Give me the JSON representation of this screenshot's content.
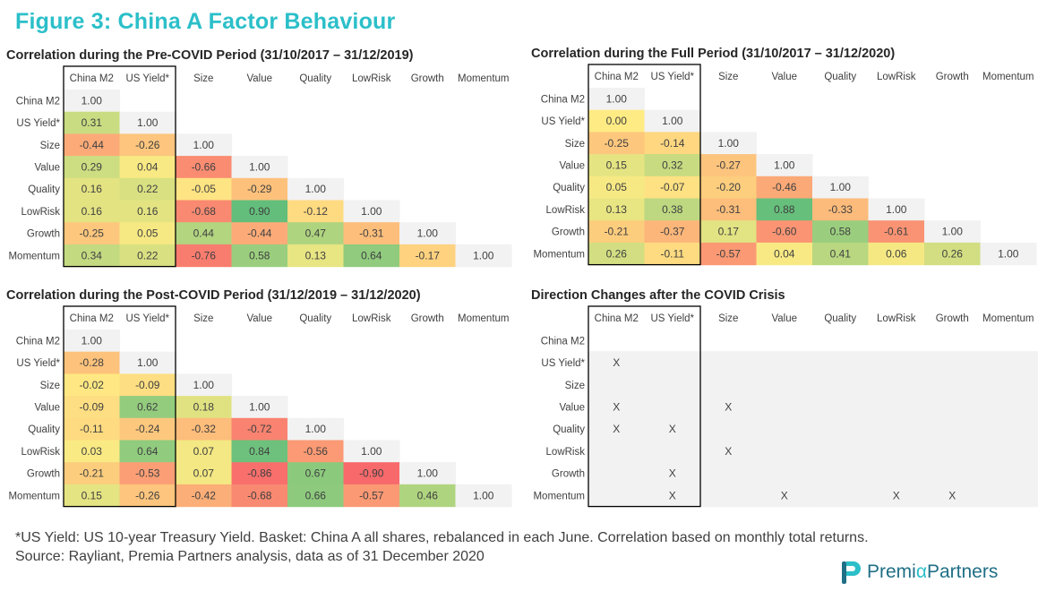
{
  "figure": {
    "title": "Figure 3: China A Factor Behaviour",
    "footnote_line1": "*US Yield: US 10-year Treasury Yield. Basket: China A all shares, rebalanced in each June. Correlation based on monthly total returns.",
    "footnote_line2": "Source: Rayliant, Premia Partners analysis, data as of 31 December 2020",
    "logo": {
      "part1": "Premi",
      "alpha": "α",
      "part2": "Partners",
      "icon": "premia-p-logo-icon"
    }
  },
  "colors": {
    "title": "#2bbfc9",
    "diagonal": "#f2f2f2",
    "positive_strong": "#63be7b",
    "neutral": "#ffeb84",
    "negative_strong": "#f8696b",
    "direction_bg": "#f2f2f2"
  },
  "chart_data": [
    {
      "type": "heatmap",
      "title": "Correlation during the Pre-COVID Period (31/10/2017 – 31/12/2019)",
      "columns": [
        "China M2",
        "US Yield*",
        "Size",
        "Value",
        "Quality",
        "LowRisk",
        "Growth",
        "Momentum"
      ],
      "rows": [
        "China M2",
        "US Yield*",
        "Size",
        "Value",
        "Quality",
        "LowRisk",
        "Growth",
        "Momentum"
      ],
      "highlighted_columns": [
        "China M2",
        "US Yield*"
      ],
      "values": [
        [
          1.0
        ],
        [
          0.31,
          1.0
        ],
        [
          -0.44,
          -0.26,
          1.0
        ],
        [
          0.29,
          0.04,
          -0.66,
          1.0
        ],
        [
          0.16,
          0.22,
          -0.05,
          -0.29,
          1.0
        ],
        [
          0.16,
          0.16,
          -0.68,
          0.9,
          -0.12,
          1.0
        ],
        [
          -0.25,
          0.05,
          0.44,
          -0.44,
          0.47,
          -0.31,
          1.0
        ],
        [
          0.34,
          0.22,
          -0.76,
          0.58,
          0.13,
          0.64,
          -0.17,
          1.0
        ]
      ]
    },
    {
      "type": "heatmap",
      "title": "Correlation during the Full Period (31/10/2017 – 31/12/2020)",
      "columns": [
        "China M2",
        "US Yield*",
        "Size",
        "Value",
        "Quality",
        "LowRisk",
        "Growth",
        "Momentum"
      ],
      "rows": [
        "China M2",
        "US Yield*",
        "Size",
        "Value",
        "Quality",
        "LowRisk",
        "Growth",
        "Momentum"
      ],
      "highlighted_columns": [
        "China M2",
        "US Yield*"
      ],
      "values": [
        [
          1.0
        ],
        [
          0.0,
          1.0
        ],
        [
          -0.25,
          -0.14,
          1.0
        ],
        [
          0.15,
          0.32,
          -0.27,
          1.0
        ],
        [
          0.05,
          -0.07,
          -0.2,
          -0.46,
          1.0
        ],
        [
          0.13,
          0.38,
          -0.31,
          0.88,
          -0.33,
          1.0
        ],
        [
          -0.21,
          -0.37,
          0.17,
          -0.6,
          0.58,
          -0.61,
          1.0
        ],
        [
          0.26,
          -0.11,
          -0.57,
          0.04,
          0.41,
          0.06,
          0.26,
          1.0
        ]
      ]
    },
    {
      "type": "heatmap",
      "title": "Correlation during the Post-COVID Period (31/12/2019 – 31/12/2020)",
      "columns": [
        "China M2",
        "US Yield*",
        "Size",
        "Value",
        "Quality",
        "LowRisk",
        "Growth",
        "Momentum"
      ],
      "rows": [
        "China M2",
        "US Yield*",
        "Size",
        "Value",
        "Quality",
        "LowRisk",
        "Growth",
        "Momentum"
      ],
      "highlighted_columns": [
        "China M2",
        "US Yield*"
      ],
      "values": [
        [
          1.0
        ],
        [
          -0.28,
          1.0
        ],
        [
          -0.02,
          -0.09,
          1.0
        ],
        [
          -0.09,
          0.62,
          0.18,
          1.0
        ],
        [
          -0.11,
          -0.24,
          -0.32,
          -0.72,
          1.0
        ],
        [
          0.03,
          0.64,
          0.07,
          0.84,
          -0.56,
          1.0
        ],
        [
          -0.21,
          -0.53,
          0.07,
          -0.86,
          0.67,
          -0.9,
          1.0
        ],
        [
          0.15,
          -0.26,
          -0.42,
          -0.68,
          0.66,
          -0.57,
          0.46,
          1.0
        ]
      ]
    },
    {
      "type": "table",
      "title": "Direction Changes after the COVID Crisis",
      "columns": [
        "China M2",
        "US Yield*",
        "Size",
        "Value",
        "Quality",
        "LowRisk",
        "Growth",
        "Momentum"
      ],
      "rows": [
        "China M2",
        "US Yield*",
        "Size",
        "Value",
        "Quality",
        "LowRisk",
        "Growth",
        "Momentum"
      ],
      "highlighted_columns": [
        "China M2",
        "US Yield*"
      ],
      "marks": [
        [
          ""
        ],
        [
          "X",
          ""
        ],
        [
          "",
          "",
          ""
        ],
        [
          "X",
          "",
          "X",
          ""
        ],
        [
          "X",
          "X",
          "",
          "",
          ""
        ],
        [
          "",
          "",
          "X",
          "",
          "",
          ""
        ],
        [
          "",
          "X",
          "",
          "",
          "",
          "",
          ""
        ],
        [
          "",
          "X",
          "",
          "X",
          "",
          "X",
          "X",
          ""
        ]
      ]
    }
  ]
}
